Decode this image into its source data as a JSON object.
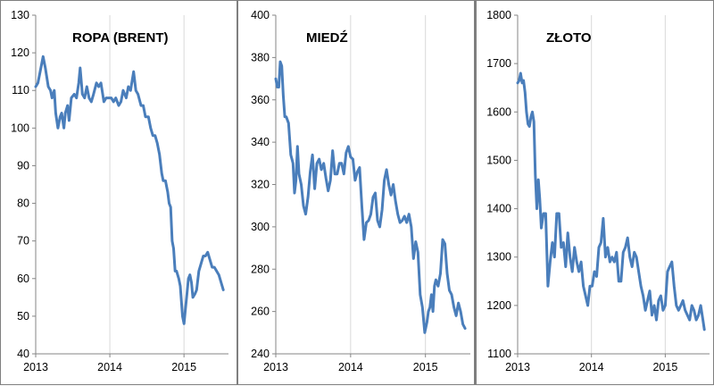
{
  "chart_data": [
    {
      "type": "line",
      "title": "ROPA (BRENT)",
      "xlabel": "",
      "ylabel": "",
      "ylim": [
        40,
        130
      ],
      "yticks": [
        40,
        50,
        60,
        70,
        80,
        90,
        100,
        110,
        120,
        130
      ],
      "xlim": [
        2013,
        2015.6
      ],
      "xticks": [
        "2013",
        "2014",
        "2015"
      ],
      "grid": "vertical-year-lines",
      "line_color": "#4a7ebb",
      "series": [
        {
          "x": [
            2013.0,
            2013.03,
            2013.06,
            2013.1,
            2013.13,
            2013.17,
            2013.2,
            2013.22,
            2013.25,
            2013.27,
            2013.3,
            2013.33,
            2013.35,
            2013.38,
            2013.4,
            2013.43,
            2013.45,
            2013.48,
            2013.52,
            2013.55,
            2013.58,
            2013.6,
            2013.63,
            2013.66,
            2013.69,
            2013.72,
            2013.75,
            2013.78,
            2013.82,
            2013.85,
            2013.88,
            2013.92,
            2013.95,
            2013.98,
            2014.02,
            2014.05,
            2014.08,
            2014.12,
            2014.15,
            2014.18,
            2014.22,
            2014.25,
            2014.28,
            2014.32,
            2014.35,
            2014.38,
            2014.42,
            2014.45,
            2014.48,
            2014.52,
            2014.55,
            2014.58,
            2014.61,
            2014.64,
            2014.67,
            2014.7,
            2014.72,
            2014.75,
            2014.78,
            2014.8,
            2014.82,
            2014.84,
            2014.86,
            2014.88,
            2014.9,
            2014.93,
            2014.95,
            2014.98,
            2015.0,
            2015.02,
            2015.04,
            2015.06,
            2015.08,
            2015.1,
            2015.12,
            2015.15,
            2015.17,
            2015.2,
            2015.23,
            2015.26,
            2015.29,
            2015.32,
            2015.35,
            2015.38,
            2015.41,
            2015.44,
            2015.47,
            2015.5,
            2015.53
          ],
          "y": [
            111,
            112,
            115,
            119,
            116,
            111,
            110,
            108,
            110,
            104,
            100,
            103,
            104,
            100,
            104,
            106,
            102,
            108,
            109,
            108,
            112,
            116,
            109,
            108,
            111,
            108,
            107,
            109,
            112,
            111,
            112,
            107,
            108,
            108,
            108,
            107,
            108,
            106,
            107,
            110,
            108,
            111,
            110,
            115,
            110,
            109,
            106,
            106,
            103,
            103,
            100,
            98,
            98,
            96,
            93,
            88,
            86,
            86,
            83,
            80,
            79,
            70,
            68,
            62,
            62,
            60,
            58,
            50,
            48,
            52,
            56,
            60,
            61,
            59,
            55,
            56,
            57,
            62,
            64,
            66,
            66,
            67,
            65,
            63,
            63,
            62,
            61,
            59,
            57
          ]
        }
      ]
    },
    {
      "type": "line",
      "title": "MIEDŹ",
      "xlabel": "",
      "ylabel": "",
      "ylim": [
        240,
        400
      ],
      "yticks": [
        240,
        260,
        280,
        300,
        320,
        340,
        360,
        380,
        400
      ],
      "xlim": [
        2013,
        2015.6
      ],
      "xticks": [
        "2013",
        "2014",
        "2015"
      ],
      "grid": "vertical-year-lines",
      "line_color": "#4a7ebb",
      "series": [
        {
          "x": [
            2013.0,
            2013.02,
            2013.04,
            2013.06,
            2013.08,
            2013.1,
            2013.12,
            2013.14,
            2013.17,
            2013.2,
            2013.23,
            2013.25,
            2013.27,
            2013.29,
            2013.31,
            2013.34,
            2013.37,
            2013.4,
            2013.43,
            2013.46,
            2013.49,
            2013.52,
            2013.55,
            2013.58,
            2013.61,
            2013.64,
            2013.67,
            2013.7,
            2013.73,
            2013.76,
            2013.79,
            2013.82,
            2013.85,
            2013.88,
            2013.91,
            2013.94,
            2013.97,
            2014.0,
            2014.03,
            2014.06,
            2014.09,
            2014.12,
            2014.15,
            2014.18,
            2014.21,
            2014.24,
            2014.27,
            2014.3,
            2014.33,
            2014.36,
            2014.39,
            2014.42,
            2014.45,
            2014.48,
            2014.51,
            2014.54,
            2014.57,
            2014.6,
            2014.63,
            2014.66,
            2014.69,
            2014.72,
            2014.75,
            2014.78,
            2014.81,
            2014.84,
            2014.87,
            2014.9,
            2014.93,
            2014.96,
            2014.99,
            2015.02,
            2015.04,
            2015.06,
            2015.08,
            2015.1,
            2015.12,
            2015.14,
            2015.17,
            2015.2,
            2015.23,
            2015.26,
            2015.29,
            2015.32,
            2015.35,
            2015.38,
            2015.41,
            2015.44,
            2015.47,
            2015.5,
            2015.53
          ],
          "y": [
            370,
            366,
            366,
            378,
            376,
            362,
            352,
            352,
            349,
            334,
            330,
            316,
            322,
            338,
            325,
            320,
            310,
            306,
            314,
            326,
            334,
            318,
            330,
            332,
            327,
            330,
            323,
            317,
            322,
            336,
            325,
            325,
            330,
            330,
            325,
            335,
            338,
            333,
            332,
            322,
            326,
            328,
            310,
            294,
            302,
            303,
            306,
            314,
            316,
            303,
            300,
            308,
            322,
            327,
            320,
            315,
            320,
            312,
            306,
            302,
            303,
            305,
            302,
            306,
            300,
            285,
            293,
            288,
            268,
            262,
            250,
            255,
            260,
            262,
            268,
            260,
            272,
            275,
            272,
            278,
            294,
            292,
            278,
            270,
            268,
            262,
            258,
            264,
            260,
            254,
            252
          ]
        }
      ]
    },
    {
      "type": "line",
      "title": "ZŁOTO",
      "xlabel": "",
      "ylabel": "",
      "ylim": [
        1100,
        1800
      ],
      "yticks": [
        1100,
        1200,
        1300,
        1400,
        1500,
        1600,
        1700,
        1800
      ],
      "xlim": [
        2013,
        2015.6
      ],
      "xticks": [
        "2013",
        "2014",
        "2015"
      ],
      "grid": "vertical-year-lines",
      "line_color": "#4a7ebb",
      "series": [
        {
          "x": [
            2013.0,
            2013.02,
            2013.04,
            2013.06,
            2013.08,
            2013.1,
            2013.12,
            2013.14,
            2013.16,
            2013.18,
            2013.2,
            2013.22,
            2013.24,
            2013.26,
            2013.28,
            2013.3,
            2013.32,
            2013.35,
            2013.38,
            2013.41,
            2013.44,
            2013.47,
            2013.5,
            2013.53,
            2013.56,
            2013.59,
            2013.62,
            2013.65,
            2013.68,
            2013.71,
            2013.74,
            2013.77,
            2013.8,
            2013.83,
            2013.86,
            2013.89,
            2013.92,
            2013.95,
            2013.98,
            2014.01,
            2014.04,
            2014.07,
            2014.1,
            2014.13,
            2014.16,
            2014.19,
            2014.22,
            2014.25,
            2014.28,
            2014.31,
            2014.34,
            2014.37,
            2014.4,
            2014.43,
            2014.46,
            2014.49,
            2014.52,
            2014.55,
            2014.58,
            2014.61,
            2014.64,
            2014.67,
            2014.7,
            2014.73,
            2014.76,
            2014.79,
            2014.82,
            2014.85,
            2014.88,
            2014.91,
            2014.94,
            2014.97,
            2015.0,
            2015.03,
            2015.06,
            2015.09,
            2015.12,
            2015.15,
            2015.18,
            2015.21,
            2015.24,
            2015.27,
            2015.3,
            2015.33,
            2015.36,
            2015.39,
            2015.42,
            2015.45,
            2015.48,
            2015.51,
            2015.53
          ],
          "y": [
            1660,
            1665,
            1680,
            1660,
            1665,
            1640,
            1600,
            1575,
            1570,
            1590,
            1600,
            1580,
            1470,
            1400,
            1460,
            1420,
            1360,
            1390,
            1390,
            1240,
            1290,
            1330,
            1300,
            1390,
            1390,
            1320,
            1330,
            1280,
            1350,
            1300,
            1270,
            1320,
            1290,
            1270,
            1290,
            1240,
            1220,
            1200,
            1240,
            1240,
            1270,
            1260,
            1320,
            1330,
            1380,
            1300,
            1320,
            1290,
            1300,
            1290,
            1310,
            1250,
            1250,
            1310,
            1320,
            1340,
            1300,
            1280,
            1310,
            1300,
            1270,
            1240,
            1220,
            1190,
            1210,
            1230,
            1180,
            1200,
            1170,
            1210,
            1220,
            1190,
            1200,
            1270,
            1280,
            1290,
            1240,
            1200,
            1190,
            1200,
            1210,
            1190,
            1180,
            1170,
            1200,
            1190,
            1170,
            1180,
            1200,
            1170,
            1150
          ]
        }
      ]
    }
  ]
}
